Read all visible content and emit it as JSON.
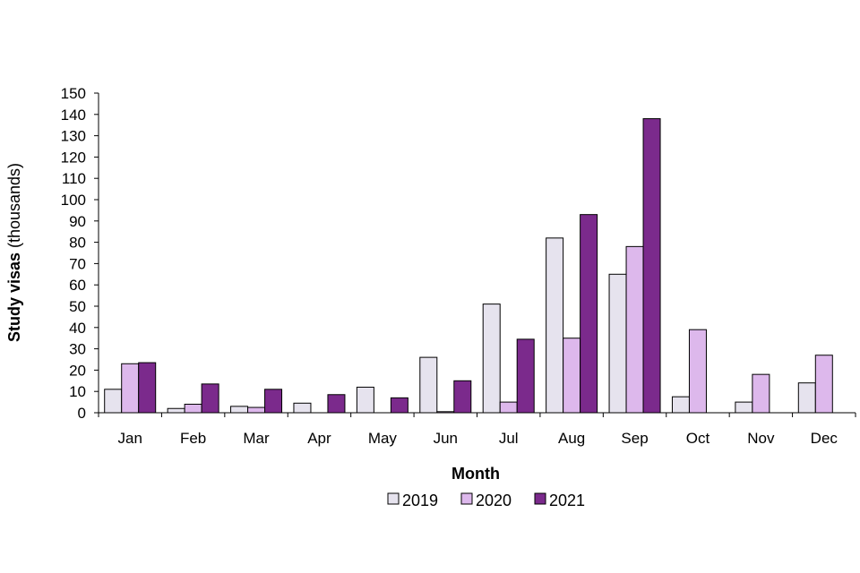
{
  "chart_data": {
    "type": "bar",
    "categories": [
      "Jan",
      "Feb",
      "Mar",
      "Apr",
      "May",
      "Jun",
      "Jul",
      "Aug",
      "Sep",
      "Oct",
      "Nov",
      "Dec"
    ],
    "series": [
      {
        "name": "2019",
        "color": "#e6e3ee",
        "values": [
          11,
          2,
          3,
          4.5,
          12,
          26,
          51,
          82,
          65,
          7.5,
          5,
          14
        ]
      },
      {
        "name": "2020",
        "color": "#ddb8ec",
        "values": [
          23,
          4,
          2.5,
          0,
          0,
          0.5,
          5,
          35,
          78,
          39,
          18,
          27
        ]
      },
      {
        "name": "2021",
        "color": "#7b2a8c",
        "values": [
          23.5,
          13.5,
          11,
          8.5,
          7,
          15,
          34.5,
          93,
          138,
          null,
          null,
          null
        ]
      }
    ],
    "ylabel_bold": "Study visas",
    "ylabel_rest": " (thousands)",
    "xlabel": "Month",
    "ylim": [
      0,
      150
    ],
    "ytick_step": 10,
    "legend_position": "bottom-center",
    "grid": false
  }
}
